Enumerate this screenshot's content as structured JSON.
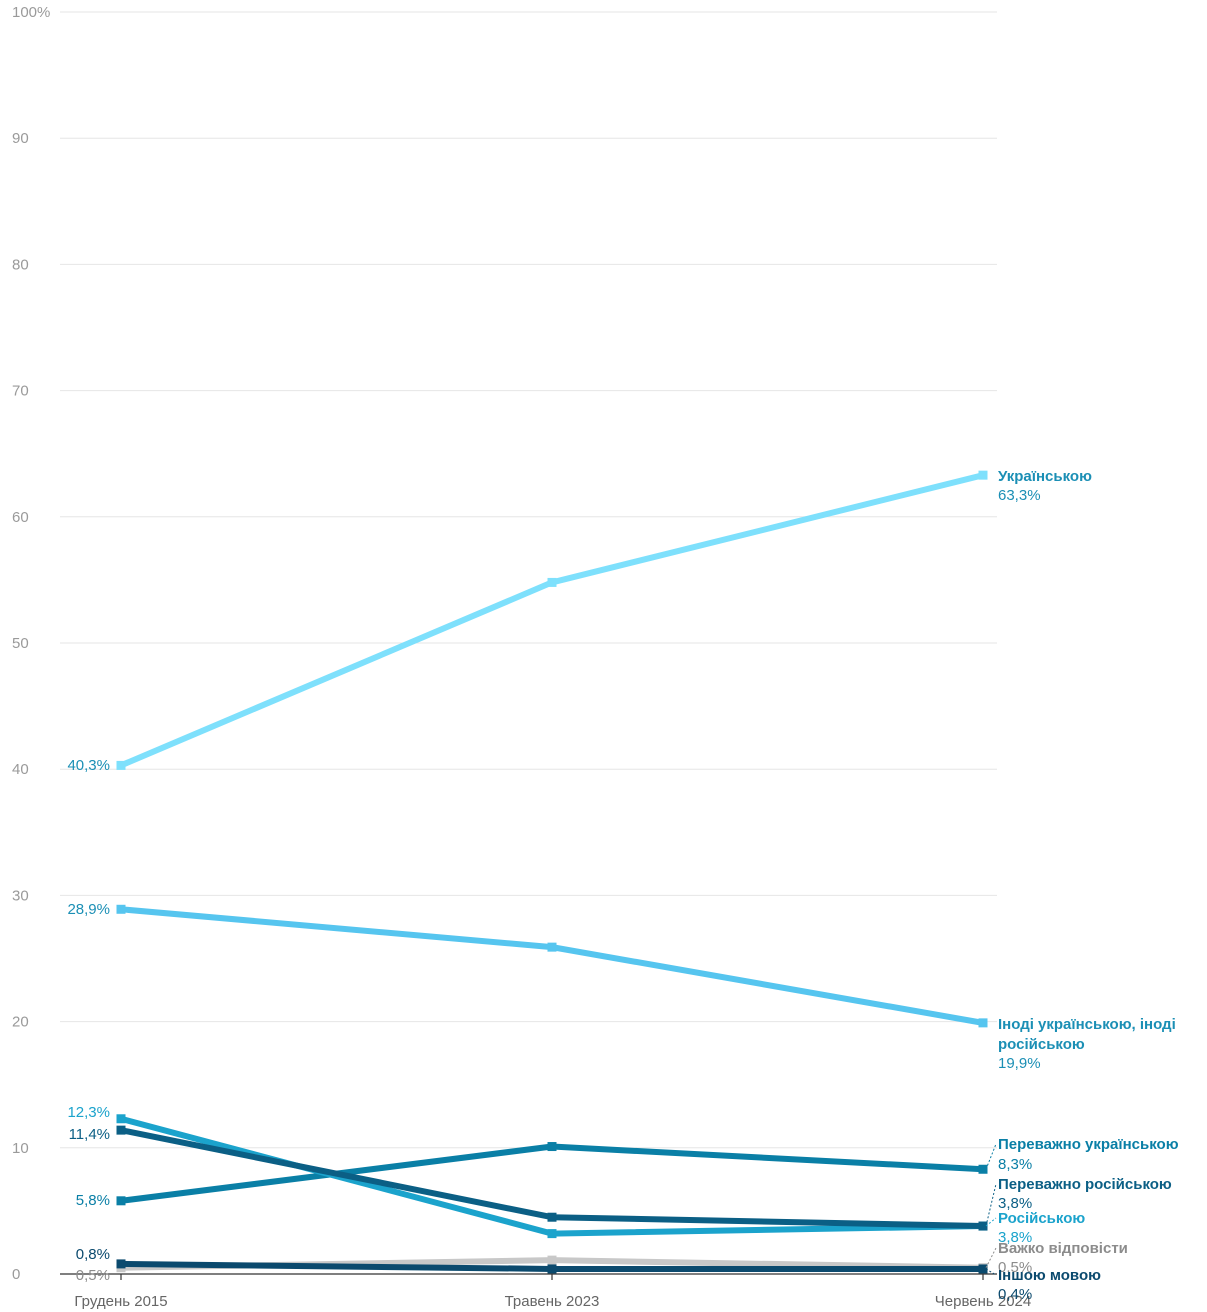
{
  "chart_data": {
    "type": "line",
    "title": "",
    "xlabel": "",
    "ylabel": "",
    "ylim": [
      0,
      100
    ],
    "yticks": [
      0,
      10,
      20,
      30,
      40,
      50,
      60,
      70,
      80,
      90,
      100
    ],
    "ytick_labels": [
      "0",
      "10",
      "20",
      "30",
      "40",
      "50",
      "60",
      "70",
      "80",
      "90",
      "100%"
    ],
    "grid": true,
    "categories": [
      "Грудень 2015",
      "Травень 2023",
      "Червень 2024"
    ],
    "series": [
      {
        "name": "Українською",
        "end_label": "63,3%",
        "start_label": "40,3%",
        "values": [
          40.3,
          54.8,
          63.3
        ],
        "color": "#7ee0fc",
        "label_color": "#1b8fb5"
      },
      {
        "name": "Іноді українською, іноді російською",
        "name_lines": [
          "Іноді українською, іноді",
          "російською"
        ],
        "end_label": "19,9%",
        "start_label": "28,9%",
        "values": [
          28.9,
          25.9,
          19.9
        ],
        "color": "#56c5ef",
        "label_color": "#1b8fb5"
      },
      {
        "name": "Переважно українською",
        "end_label": "8,3%",
        "start_label": "5,8%",
        "values": [
          5.8,
          10.1,
          8.3
        ],
        "color": "#0a7fa6",
        "label_color": "#0a7fa6"
      },
      {
        "name": "Переважно російською",
        "end_label": "3,8%",
        "start_label": "11,4%",
        "values": [
          11.4,
          4.5,
          3.8
        ],
        "color": "#0b5f85",
        "label_color": "#0b5f85"
      },
      {
        "name": "Російською",
        "end_label": "3,8%",
        "start_label": "12,3%",
        "values": [
          12.3,
          3.2,
          3.8
        ],
        "color": "#1ba3cc",
        "label_color": "#1ba3cc"
      },
      {
        "name": "Важко відповісти",
        "end_label": "0,5%",
        "start_label": "0,5%",
        "values": [
          0.5,
          1.1,
          0.5
        ],
        "color": "#c8c8c8",
        "label_color": "#8c8c8c"
      },
      {
        "name": "Іншою мовою",
        "end_label": "0,4%",
        "start_label": "0,8%",
        "values": [
          0.8,
          0.4,
          0.4
        ],
        "color": "#0b4a6e",
        "label_color": "#0b4a6e"
      }
    ]
  }
}
